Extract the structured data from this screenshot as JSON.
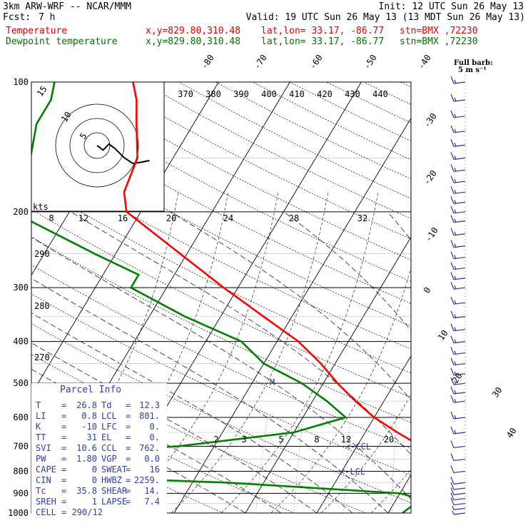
{
  "header": {
    "model": "3km ARW-WRF -- NCAR/MMM",
    "init": "Init: 12 UTC Sun 26 May 13",
    "fcst_label": "Fcst:",
    "fcst_value": "7 h",
    "valid": "Valid: 19 UTC Sun 26 May 13 (13 MDT Sun 26 May 13)",
    "temp_label": "Temperature",
    "dew_label": "Dewpoint temperature",
    "xy": "x,y=829.80,310.48",
    "latlon": "lat,lon= 33.17, -86.77",
    "stn": "stn=BMX ,72230"
  },
  "barb_legend": {
    "line1": "Full barb:",
    "line2": "5 m s⁻¹"
  },
  "hodograph": {
    "ring_labels": [
      "5",
      "10",
      "15"
    ],
    "units": "kts"
  },
  "parcel_info": {
    "title": "Parcel Info",
    "rows": [
      [
        "T",
        "26.8",
        "Td",
        "12.3"
      ],
      [
        "LI",
        "0.8",
        "LCL",
        "801."
      ],
      [
        "K",
        "-10",
        "LFC",
        "0."
      ],
      [
        "TT",
        "31",
        "EL",
        "0."
      ],
      [
        "SVI",
        "10.6",
        "CCL",
        "762."
      ],
      [
        "PW",
        "1.80",
        "VGP",
        "0.0"
      ],
      [
        "CAPE",
        "0",
        "SWEAT",
        "16"
      ],
      [
        "CIN",
        "0",
        "HWBZ",
        "2259."
      ],
      [
        "Tc",
        "35.8",
        "SHEAR",
        "14."
      ],
      [
        "SREH",
        "1",
        "LAPSE",
        "7.4"
      ]
    ],
    "cell": "CELL = 290/12"
  },
  "colors": {
    "temperature": "#ff0000",
    "dewpoint": "#008000",
    "frame": "#000000",
    "barb": "#3030a0"
  },
  "chart_data": {
    "type": "line",
    "chart_kind": "skew-T log-p sounding",
    "y_axis": {
      "quantity": "pressure",
      "units": "hPa",
      "scale": "log",
      "range": [
        1000,
        100
      ],
      "ticks": [
        100,
        200,
        300,
        400,
        500,
        600,
        700,
        800,
        900,
        1000
      ]
    },
    "temperature_ticks": [
      -80,
      -70,
      -60,
      -50,
      -40,
      -30,
      -20,
      -10,
      0,
      10,
      20,
      30,
      40
    ],
    "theta_e_labels": [
      370,
      380,
      390,
      400,
      410,
      420,
      430,
      440
    ],
    "theta_labels": [
      290,
      280,
      270
    ],
    "mixing_ratio_labels_upper": [
      8,
      12,
      16,
      20,
      24,
      28,
      32
    ],
    "mixing_ratio_labels_lower": [
      2,
      3,
      5,
      8,
      12,
      20
    ],
    "annotations": [
      "CCL",
      "LCL",
      "M"
    ],
    "series": [
      {
        "name": "Temperature",
        "points": [
          [
            1000,
            27
          ],
          [
            950,
            24
          ],
          [
            925,
            22
          ],
          [
            900,
            20.5
          ],
          [
            850,
            18
          ],
          [
            800,
            15
          ],
          [
            750,
            12
          ],
          [
            700,
            9
          ],
          [
            650,
            4.5
          ],
          [
            600,
            0
          ],
          [
            550,
            -4
          ],
          [
            500,
            -8
          ],
          [
            450,
            -12
          ],
          [
            400,
            -17
          ],
          [
            350,
            -24
          ],
          [
            300,
            -32
          ],
          [
            250,
            -41
          ],
          [
            200,
            -52
          ],
          [
            180,
            -54
          ],
          [
            150,
            -55
          ],
          [
            125,
            -58
          ],
          [
            110,
            -60
          ],
          [
            100,
            -62
          ]
        ]
      },
      {
        "name": "Dewpoint temperature",
        "points": [
          [
            1000,
            12
          ],
          [
            950,
            13
          ],
          [
            925,
            13
          ],
          [
            900,
            10
          ],
          [
            850,
            -15
          ],
          [
            800,
            -60
          ],
          [
            780,
            -74
          ],
          [
            750,
            -55
          ],
          [
            700,
            -25
          ],
          [
            650,
            -10
          ],
          [
            600,
            -4
          ],
          [
            550,
            -8
          ],
          [
            500,
            -13
          ],
          [
            450,
            -20
          ],
          [
            400,
            -25
          ],
          [
            350,
            -35
          ],
          [
            300,
            -45
          ],
          [
            280,
            -45
          ],
          [
            250,
            -53
          ],
          [
            200,
            -68
          ],
          [
            180,
            -70
          ],
          [
            150,
            -70
          ],
          [
            125,
            -72
          ],
          [
            110,
            -72
          ],
          [
            100,
            -73
          ]
        ]
      }
    ],
    "hodograph_path": [
      [
        0,
        0
      ],
      [
        0.2,
        0.15
      ],
      [
        0.4,
        -0.05
      ],
      [
        0.6,
        0.1
      ],
      [
        0.9,
        0.4
      ],
      [
        1.2,
        0.6
      ],
      [
        1.5,
        0.55
      ],
      [
        1.75,
        0.5
      ]
    ],
    "wind_barbs": [
      {
        "p": 1000,
        "spd": 5
      },
      {
        "p": 975,
        "spd": 5
      },
      {
        "p": 950,
        "spd": 10
      },
      {
        "p": 925,
        "spd": 10
      },
      {
        "p": 900,
        "spd": 10
      },
      {
        "p": 875,
        "spd": 10
      },
      {
        "p": 850,
        "spd": 10
      },
      {
        "p": 800,
        "spd": 10
      },
      {
        "p": 750,
        "spd": 10
      },
      {
        "p": 700,
        "spd": 10
      },
      {
        "p": 650,
        "spd": 15
      },
      {
        "p": 600,
        "spd": 15
      },
      {
        "p": 550,
        "spd": 15
      },
      {
        "p": 525,
        "spd": 15
      },
      {
        "p": 500,
        "spd": 15
      },
      {
        "p": 475,
        "spd": 15
      },
      {
        "p": 450,
        "spd": 15
      },
      {
        "p": 425,
        "spd": 15
      },
      {
        "p": 400,
        "spd": 15
      },
      {
        "p": 375,
        "spd": 15
      },
      {
        "p": 350,
        "spd": 15
      },
      {
        "p": 325,
        "spd": 15
      },
      {
        "p": 300,
        "spd": 15
      },
      {
        "p": 285,
        "spd": 15
      },
      {
        "p": 270,
        "spd": 15
      },
      {
        "p": 255,
        "spd": 15
      },
      {
        "p": 240,
        "spd": 15
      },
      {
        "p": 225,
        "spd": 15
      },
      {
        "p": 210,
        "spd": 15
      },
      {
        "p": 200,
        "spd": 15
      },
      {
        "p": 190,
        "spd": 15
      },
      {
        "p": 180,
        "spd": 15
      },
      {
        "p": 170,
        "spd": 15
      },
      {
        "p": 160,
        "spd": 15
      },
      {
        "p": 150,
        "spd": 15
      },
      {
        "p": 140,
        "spd": 15
      },
      {
        "p": 130,
        "spd": 15
      },
      {
        "p": 120,
        "spd": 15
      },
      {
        "p": 110,
        "spd": 15
      },
      {
        "p": 100,
        "spd": 15
      }
    ]
  }
}
